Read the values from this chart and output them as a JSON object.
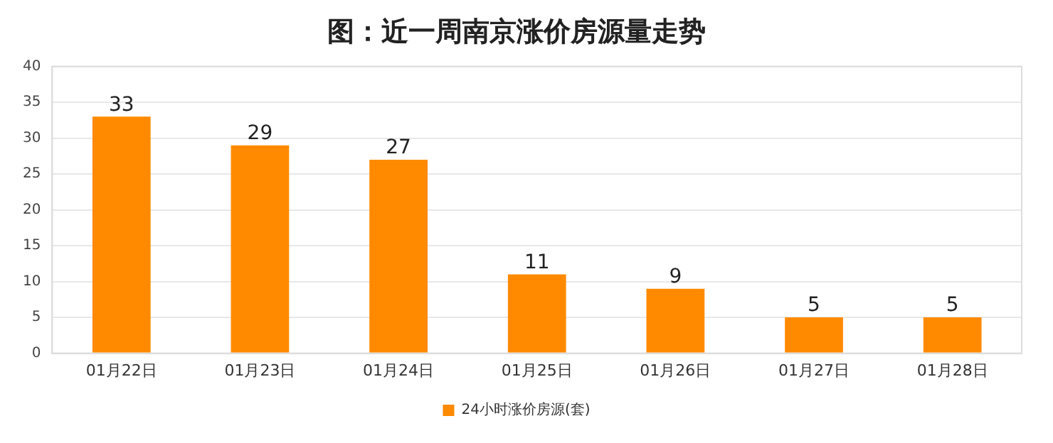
{
  "chart_data": {
    "type": "bar",
    "title": "图：近一周南京涨价房源量走势",
    "categories": [
      "01月22日",
      "01月23日",
      "01月24日",
      "01月25日",
      "01月26日",
      "01月27日",
      "01月28日"
    ],
    "series": [
      {
        "name": "24小时涨价房源(套)",
        "color": "#ff8a00",
        "values": [
          33,
          29,
          27,
          11,
          9,
          5,
          5
        ]
      }
    ],
    "ylim": [
      0,
      40
    ],
    "yticks": [
      0,
      5,
      10,
      15,
      20,
      25,
      30,
      35,
      40
    ],
    "grid": "y",
    "legend": "bottom",
    "data_labels": true
  }
}
